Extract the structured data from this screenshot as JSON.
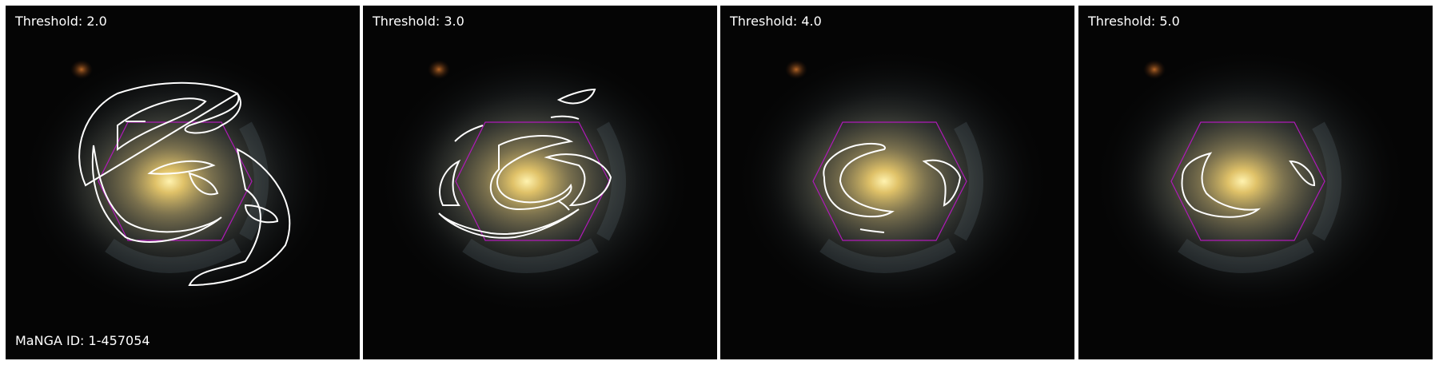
{
  "figure": {
    "manga_id_label": "MaNGA ID: 1-457054",
    "panels": [
      {
        "label": "Threshold: 2.0"
      },
      {
        "label": "Threshold: 3.0"
      },
      {
        "label": "Threshold: 4.0"
      },
      {
        "label": "Threshold: 5.0"
      }
    ],
    "colors": {
      "background": "#000000",
      "contour": "#ffffff",
      "hexagon": "#b01ab8",
      "galaxy_core": "#f5d77a",
      "galaxy_halo": "#8fa3a8"
    }
  }
}
